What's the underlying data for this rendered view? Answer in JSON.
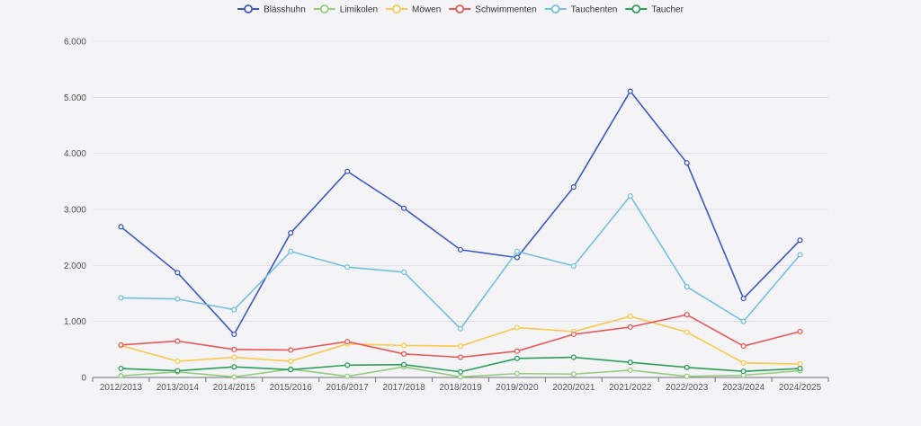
{
  "chart_data": {
    "type": "line",
    "title": "",
    "xlabel": "",
    "ylabel": "",
    "ylim": [
      0,
      6000
    ],
    "y_ticks": [
      0,
      1000,
      2000,
      3000,
      4000,
      5000,
      6000
    ],
    "y_tick_labels": [
      "0",
      "1.000",
      "2.000",
      "3.000",
      "4.000",
      "5.000",
      "6.000"
    ],
    "grid": true,
    "legend_position": "top-center",
    "categories": [
      "2012/2013",
      "2013/2014",
      "2014/2015",
      "2015/2016",
      "2016/2017",
      "2017/2018",
      "2018/2019",
      "2019/2020",
      "2020/2021",
      "2021/2022",
      "2022/2023",
      "2023/2024",
      "2024/2025"
    ],
    "series": [
      {
        "name": "Blässhuhn",
        "color": "#3b57c4",
        "values": [
          2690,
          1870,
          770,
          2580,
          3680,
          3020,
          2280,
          2140,
          3400,
          5110,
          3830,
          1410,
          2450
        ]
      },
      {
        "name": "Limikolen",
        "color": "#94cc7c",
        "values": [
          30,
          100,
          10,
          150,
          20,
          190,
          10,
          70,
          60,
          130,
          20,
          40,
          120
        ]
      },
      {
        "name": "Möwen",
        "color": "#f8c94b",
        "values": [
          570,
          290,
          360,
          290,
          600,
          570,
          560,
          890,
          820,
          1090,
          810,
          260,
          240
        ]
      },
      {
        "name": "Schwimmenten",
        "color": "#e65858",
        "values": [
          580,
          650,
          500,
          490,
          640,
          420,
          360,
          470,
          770,
          900,
          1120,
          560,
          820
        ]
      },
      {
        "name": "Tauchenten",
        "color": "#73c0de",
        "values": [
          1420,
          1400,
          1210,
          2250,
          1970,
          1880,
          870,
          2250,
          1990,
          3240,
          1620,
          1000,
          2190
        ]
      },
      {
        "name": "Taucher",
        "color": "#2b9e5c",
        "values": [
          160,
          120,
          190,
          140,
          220,
          230,
          100,
          340,
          360,
          270,
          180,
          110,
          160
        ]
      }
    ]
  }
}
